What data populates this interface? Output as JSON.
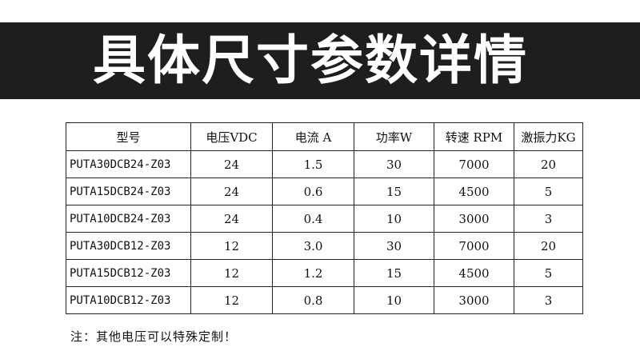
{
  "title": "具体尺寸参数详情",
  "table": {
    "headers": [
      "型号",
      "电压VDC",
      "电流 A",
      "功率W",
      "转速 RPM",
      "激振力KG"
    ],
    "rows": [
      [
        "PUTA30DCB24-Z03",
        "24",
        "1.5",
        "30",
        "7000",
        "20"
      ],
      [
        "PUTA15DCB24-Z03",
        "24",
        "0.6",
        "15",
        "4500",
        "5"
      ],
      [
        "PUTA10DCB24-Z03",
        "24",
        "0.4",
        "10",
        "3000",
        "3"
      ],
      [
        "PUTA30DCB12-Z03",
        "12",
        "3.0",
        "30",
        "7000",
        "20"
      ],
      [
        "PUTA15DCB12-Z03",
        "12",
        "1.2",
        "15",
        "4500",
        "5"
      ],
      [
        "PUTA10DCB12-Z03",
        "12",
        "0.8",
        "10",
        "3000",
        "3"
      ]
    ]
  },
  "note": "注：其他电压可以特殊定制！"
}
